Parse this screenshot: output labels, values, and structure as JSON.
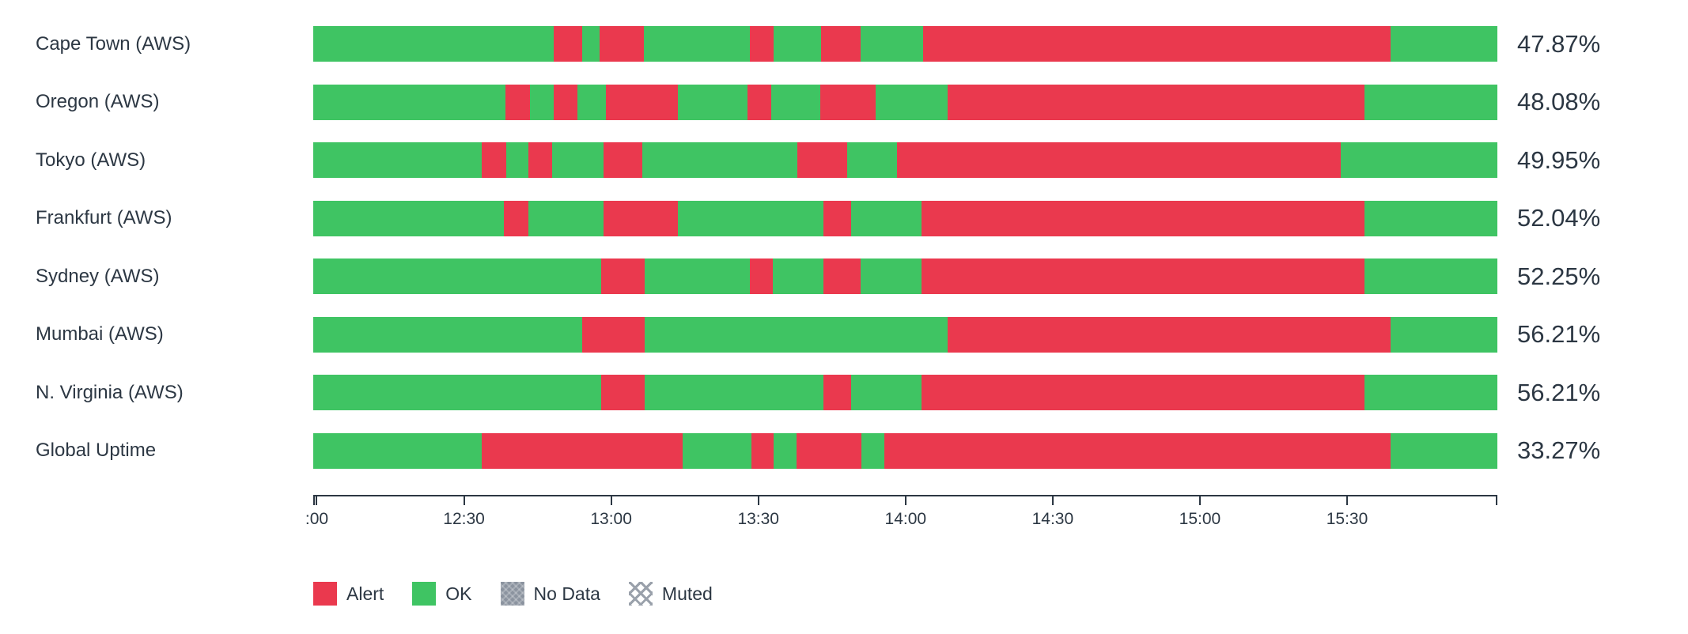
{
  "colors": {
    "alert": "#ea394e",
    "ok": "#3fc463",
    "nodata": "#8b939f",
    "muted_line": "#9aa1ab",
    "text": "#2c3743",
    "axis": "#2c3743"
  },
  "chart_data": {
    "type": "bar",
    "orientation": "horizontal",
    "stacking": "status-timeline",
    "title": "",
    "legend_position": "bottom",
    "rows": [
      {
        "label": "Cape Town (AWS)",
        "uptime_label": "47.87%",
        "uptime": 47.87,
        "segments": [
          [
            "ok",
            20.3
          ],
          [
            "alert",
            2.4
          ],
          [
            "ok",
            1.5
          ],
          [
            "alert",
            3.7
          ],
          [
            "ok",
            9.0
          ],
          [
            "alert",
            2.0
          ],
          [
            "ok",
            4.0
          ],
          [
            "alert",
            3.3
          ],
          [
            "ok",
            5.3
          ],
          [
            "alert",
            39.5
          ],
          [
            "ok",
            9.0
          ]
        ]
      },
      {
        "label": "Oregon (AWS)",
        "uptime_label": "48.08%",
        "uptime": 48.08,
        "segments": [
          [
            "ok",
            16.2
          ],
          [
            "alert",
            2.1
          ],
          [
            "ok",
            2.0
          ],
          [
            "alert",
            2.0
          ],
          [
            "ok",
            2.4
          ],
          [
            "alert",
            6.1
          ],
          [
            "ok",
            5.9
          ],
          [
            "alert",
            2.0
          ],
          [
            "ok",
            4.1
          ],
          [
            "alert",
            4.7
          ],
          [
            "ok",
            6.1
          ],
          [
            "alert",
            35.2
          ],
          [
            "ok",
            11.2
          ]
        ]
      },
      {
        "label": "Tokyo (AWS)",
        "uptime_label": "49.95%",
        "uptime": 49.95,
        "segments": [
          [
            "ok",
            14.2
          ],
          [
            "alert",
            2.1
          ],
          [
            "ok",
            1.9
          ],
          [
            "alert",
            2.0
          ],
          [
            "ok",
            4.3
          ],
          [
            "alert",
            3.3
          ],
          [
            "ok",
            13.1
          ],
          [
            "alert",
            4.2
          ],
          [
            "ok",
            4.2
          ],
          [
            "alert",
            37.5
          ],
          [
            "ok",
            13.2
          ]
        ]
      },
      {
        "label": "Frankfurt (AWS)",
        "uptime_label": "52.04%",
        "uptime": 52.04,
        "segments": [
          [
            "ok",
            16.1
          ],
          [
            "alert",
            2.1
          ],
          [
            "ok",
            6.3
          ],
          [
            "alert",
            6.3
          ],
          [
            "ok",
            12.3
          ],
          [
            "alert",
            2.3
          ],
          [
            "ok",
            6.0
          ],
          [
            "alert",
            37.4
          ],
          [
            "ok",
            11.2
          ]
        ]
      },
      {
        "label": "Sydney (AWS)",
        "uptime_label": "52.25%",
        "uptime": 52.25,
        "segments": [
          [
            "ok",
            24.3
          ],
          [
            "alert",
            3.7
          ],
          [
            "ok",
            8.9
          ],
          [
            "alert",
            1.9
          ],
          [
            "ok",
            4.3
          ],
          [
            "alert",
            3.1
          ],
          [
            "ok",
            5.2
          ],
          [
            "alert",
            37.4
          ],
          [
            "ok",
            11.2
          ]
        ]
      },
      {
        "label": "Mumbai (AWS)",
        "uptime_label": "56.21%",
        "uptime": 56.21,
        "segments": [
          [
            "ok",
            22.7
          ],
          [
            "alert",
            5.3
          ],
          [
            "ok",
            25.6
          ],
          [
            "alert",
            37.4
          ],
          [
            "ok",
            9.0
          ]
        ]
      },
      {
        "label": "N. Virginia (AWS)",
        "uptime_label": "56.21%",
        "uptime": 56.21,
        "segments": [
          [
            "ok",
            24.3
          ],
          [
            "alert",
            3.7
          ],
          [
            "ok",
            15.1
          ],
          [
            "alert",
            2.3
          ],
          [
            "ok",
            6.0
          ],
          [
            "alert",
            37.4
          ],
          [
            "ok",
            11.2
          ]
        ]
      },
      {
        "label": "Global Uptime",
        "uptime_label": "33.27%",
        "uptime": 33.27,
        "segments": [
          [
            "ok",
            14.2
          ],
          [
            "alert",
            17.0
          ],
          [
            "ok",
            5.8
          ],
          [
            "alert",
            1.9
          ],
          [
            "ok",
            1.9
          ],
          [
            "alert",
            5.5
          ],
          [
            "ok",
            1.9
          ],
          [
            "alert",
            42.8
          ],
          [
            "ok",
            9.0
          ]
        ]
      }
    ],
    "x_ticks": [
      {
        "label": ":00",
        "pos": 0.003
      },
      {
        "label": "12:30",
        "pos": 0.1273
      },
      {
        "label": "13:00",
        "pos": 0.2516
      },
      {
        "label": "13:30",
        "pos": 0.3759
      },
      {
        "label": "14:00",
        "pos": 0.5002
      },
      {
        "label": "14:30",
        "pos": 0.6245
      },
      {
        "label": "15:00",
        "pos": 0.7488
      },
      {
        "label": "15:30",
        "pos": 0.8731
      }
    ],
    "legend": [
      {
        "id": "alert",
        "label": "Alert"
      },
      {
        "id": "ok",
        "label": "OK"
      },
      {
        "id": "nodata",
        "label": "No Data"
      },
      {
        "id": "muted",
        "label": "Muted"
      }
    ]
  }
}
